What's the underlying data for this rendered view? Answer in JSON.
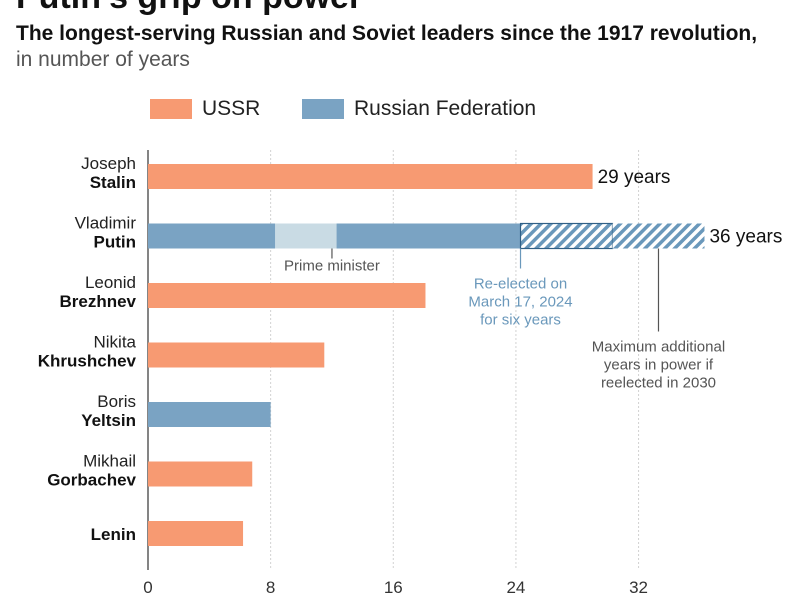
{
  "header": {
    "title": "Putin's grip on power",
    "subtitle": "The longest-serving Russian and Soviet leaders since the 1917 revolution,",
    "unit": "in number of years"
  },
  "colors": {
    "ussr": "#f79a72",
    "russian_federation": "#7aa3c3",
    "prime_minister": "#c9dbe4",
    "hatch": "#6a98bb",
    "annotation_blue": "#6a98bb",
    "annotation_gray": "#555555"
  },
  "chart_data": {
    "type": "bar",
    "orientation": "horizontal",
    "title": "Putin's grip on power",
    "subtitle": "The longest-serving Russian and Soviet leaders since the 1917 revolution, in number of years",
    "xlim": [
      0,
      36
    ],
    "xticks": [
      0,
      8,
      16,
      24,
      32
    ],
    "grid": true,
    "legend_placement": "top-left",
    "legend": [
      {
        "name": "USSR",
        "color_key": "ussr"
      },
      {
        "name": "Russian Federation",
        "color_key": "russian_federation"
      }
    ],
    "leaders": [
      {
        "first": "Joseph",
        "last": "Stalin",
        "series": "USSR",
        "value": 29,
        "label": "29 years",
        "segments": [
          {
            "from": 0,
            "to": 29,
            "style": "ussr"
          }
        ]
      },
      {
        "first": "Vladimir",
        "last": "Putin",
        "series": "Russian Federation",
        "value": 36,
        "label": "36 years",
        "segments": [
          {
            "from": 0,
            "to": 8.3,
            "style": "russian_federation"
          },
          {
            "from": 8.3,
            "to": 12.3,
            "style": "prime_minister"
          },
          {
            "from": 12.3,
            "to": 24.3,
            "style": "russian_federation"
          },
          {
            "from": 24.3,
            "to": 30.3,
            "style": "hatch_outlined"
          },
          {
            "from": 30.3,
            "to": 36.3,
            "style": "hatch"
          }
        ]
      },
      {
        "first": "Leonid",
        "last": "Brezhnev",
        "series": "USSR",
        "value": 18,
        "segments": [
          {
            "from": 0,
            "to": 18.1,
            "style": "ussr"
          }
        ]
      },
      {
        "first": "Nikita",
        "last": "Khrushchev",
        "series": "USSR",
        "value": 11,
        "segments": [
          {
            "from": 0,
            "to": 11.5,
            "style": "ussr"
          }
        ]
      },
      {
        "first": "Boris",
        "last": "Yeltsin",
        "series": "Russian Federation",
        "value": 8,
        "segments": [
          {
            "from": 0,
            "to": 8,
            "style": "russian_federation"
          }
        ]
      },
      {
        "first": "Mikhail",
        "last": "Gorbachev",
        "series": "USSR",
        "value": 7,
        "segments": [
          {
            "from": 0,
            "to": 6.8,
            "style": "ussr"
          }
        ]
      },
      {
        "first": "",
        "last": "Lenin",
        "series": "USSR",
        "value": 6,
        "segments": [
          {
            "from": 0,
            "to": 6.2,
            "style": "ussr"
          }
        ]
      }
    ],
    "annotations": [
      {
        "id": "prime-minister",
        "lines": [
          "Prime minister"
        ],
        "at_x": 12,
        "color_key": "annotation_gray"
      },
      {
        "id": "re-elected",
        "lines": [
          "Re-elected on",
          "March 17, 2024",
          "for six years"
        ],
        "at_x": 24.3,
        "color_key": "annotation_blue"
      },
      {
        "id": "max-additional",
        "lines": [
          "Maximum additional",
          "years in power if",
          "reelected in 2030"
        ],
        "at_x": 33.3,
        "color_key": "annotation_gray"
      }
    ]
  }
}
